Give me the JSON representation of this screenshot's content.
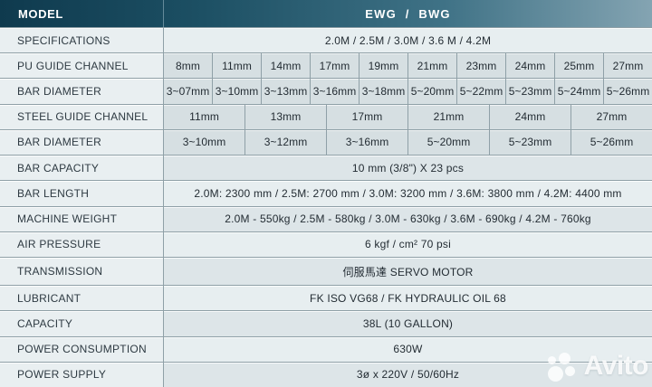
{
  "header": {
    "model_label": "MODEL",
    "model_value": "EWG / BWG"
  },
  "rows": [
    {
      "label": "SPECIFICATIONS",
      "value": "2.0M / 2.5M / 3.0M / 3.6 M / 4.2M"
    },
    {
      "label": "PU GUIDE CHANNEL",
      "cells": [
        "8mm",
        "11mm",
        "14mm",
        "17mm",
        "19mm",
        "21mm",
        "23mm",
        "24mm",
        "25mm",
        "27mm"
      ]
    },
    {
      "label": "BAR DIAMETER",
      "cells": [
        "3~07mm",
        "3~10mm",
        "3~13mm",
        "3~16mm",
        "3~18mm",
        "5~20mm",
        "5~22mm",
        "5~23mm",
        "5~24mm",
        "5~26mm"
      ]
    },
    {
      "label": "STEEL GUIDE CHANNEL",
      "cells": [
        "11mm",
        "13mm",
        "17mm",
        "21mm",
        "24mm",
        "27mm"
      ]
    },
    {
      "label": "BAR DIAMETER",
      "cells": [
        "3~10mm",
        "3~12mm",
        "3~16mm",
        "5~20mm",
        "5~23mm",
        "5~26mm"
      ]
    },
    {
      "label": "BAR CAPACITY",
      "value": "10 mm (3/8\")  X  23 pcs"
    },
    {
      "label": "BAR LENGTH",
      "value": "2.0M: 2300 mm  /  2.5M: 2700 mm / 3.0M: 3200 mm / 3.6M: 3800 mm / 4.2M: 4400 mm"
    },
    {
      "label": "MACHINE WEIGHT",
      "value": "2.0M - 550kg / 2.5M - 580kg / 3.0M - 630kg / 3.6M - 690kg / 4.2M - 760kg"
    },
    {
      "label": "AIR PRESSURE",
      "value": "6 kgf / cm²  70 psi"
    },
    {
      "label": "TRANSMISSION",
      "value": "伺服馬達 SERVO MOTOR"
    },
    {
      "label": "LUBRICANT",
      "value": "FK ISO VG68 / FK HYDRAULIC OIL 68"
    },
    {
      "label": "CAPACITY",
      "value": "38L (10 GALLON)"
    },
    {
      "label": "POWER CONSUMPTION",
      "value": "630W"
    },
    {
      "label": "POWER SUPPLY",
      "value": "3ø x 220V /  50/60Hz"
    }
  ],
  "watermark": {
    "text": "Avito"
  },
  "colors": {
    "header_dark": "#0f3a4e",
    "header_light": "#84a4b2",
    "grid_border": "#8fa0a7",
    "cell_gray": "#d6dfe2",
    "row_light": "#e7eef0",
    "row_gray": "#dde5e8",
    "text": "#232c33"
  }
}
